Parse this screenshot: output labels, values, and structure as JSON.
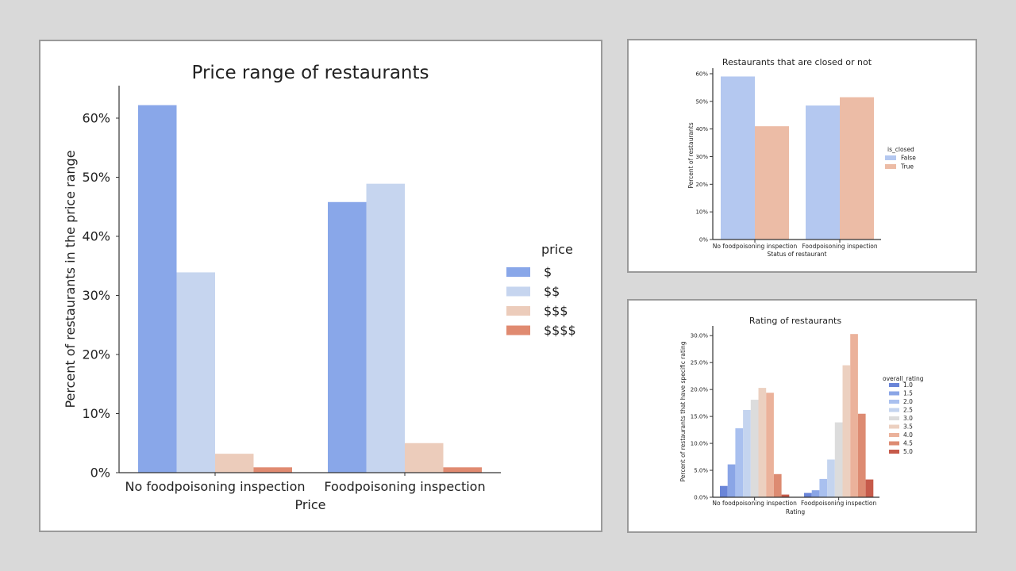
{
  "chart_data": [
    {
      "id": "price",
      "type": "bar",
      "title": "Price range of restaurants",
      "xlabel": "Price",
      "ylabel": "Percent of restaurants in the price range",
      "categories": [
        "No foodpoisoning inspection",
        "Foodpoisoning inspection"
      ],
      "ylim": [
        0,
        0.655
      ],
      "yticks": [
        0,
        0.1,
        0.2,
        0.3,
        0.4,
        0.5,
        0.6
      ],
      "ytick_labels": [
        "0%",
        "10%",
        "20%",
        "30%",
        "40%",
        "50%",
        "60%"
      ],
      "legend": {
        "title": "price",
        "position": "right"
      },
      "series": [
        {
          "name": "$",
          "color": "#89a7e9",
          "values": [
            0.622,
            0.458
          ]
        },
        {
          "name": "$$",
          "color": "#c6d5ef",
          "values": [
            0.339,
            0.489
          ]
        },
        {
          "name": "$$$",
          "color": "#ecccbb",
          "values": [
            0.032,
            0.05
          ]
        },
        {
          "name": "$$$$",
          "color": "#e08a70",
          "values": [
            0.009,
            0.009
          ]
        }
      ]
    },
    {
      "id": "closed",
      "type": "bar",
      "title": "Restaurants that are closed or not",
      "xlabel": "Status of restaurant",
      "ylabel": "Percent of restaurants",
      "categories": [
        "No foodpoisoning inspection",
        "Foodpoisoning inspection"
      ],
      "ylim": [
        0,
        0.62
      ],
      "yticks": [
        0,
        0.1,
        0.2,
        0.3,
        0.4,
        0.5,
        0.6
      ],
      "ytick_labels": [
        "0%",
        "10%",
        "20%",
        "30%",
        "40%",
        "50%",
        "60%"
      ],
      "legend": {
        "title": "is_closed",
        "position": "right"
      },
      "series": [
        {
          "name": "False",
          "color": "#b4c8f0",
          "values": [
            0.59,
            0.485
          ]
        },
        {
          "name": "True",
          "color": "#ecbca6",
          "values": [
            0.41,
            0.515
          ]
        }
      ]
    },
    {
      "id": "rating",
      "type": "bar",
      "title": "Rating of restaurants",
      "xlabel": "Rating",
      "ylabel": "Percent of restaurants that have specific rating",
      "categories": [
        "No foodpoisoning inspection",
        "Foodpoisoning inspection"
      ],
      "ylim": [
        0,
        0.318
      ],
      "yticks": [
        0,
        0.05,
        0.1,
        0.15,
        0.2,
        0.25,
        0.3
      ],
      "ytick_labels": [
        "0.0%",
        "5.0%",
        "10.0%",
        "15.0%",
        "20.0%",
        "25.0%",
        "30.0%"
      ],
      "legend": {
        "title": "overall_rating",
        "position": "right"
      },
      "series": [
        {
          "name": "1.0",
          "color": "#6a85d8",
          "values": [
            0.021,
            0.008
          ]
        },
        {
          "name": "1.5",
          "color": "#8aa5e6",
          "values": [
            0.061,
            0.013
          ]
        },
        {
          "name": "2.0",
          "color": "#a9c0ef",
          "values": [
            0.128,
            0.034
          ]
        },
        {
          "name": "2.5",
          "color": "#c4d4ef",
          "values": [
            0.162,
            0.07
          ]
        },
        {
          "name": "3.0",
          "color": "#dcdcdc",
          "values": [
            0.181,
            0.139
          ]
        },
        {
          "name": "3.5",
          "color": "#ecd0c0",
          "values": [
            0.203,
            0.245
          ]
        },
        {
          "name": "4.0",
          "color": "#ebb29b",
          "values": [
            0.194,
            0.303
          ]
        },
        {
          "name": "4.5",
          "color": "#dd8b72",
          "values": [
            0.043,
            0.155
          ]
        },
        {
          "name": "5.0",
          "color": "#c65a4a",
          "values": [
            0.005,
            0.033
          ]
        }
      ]
    }
  ]
}
